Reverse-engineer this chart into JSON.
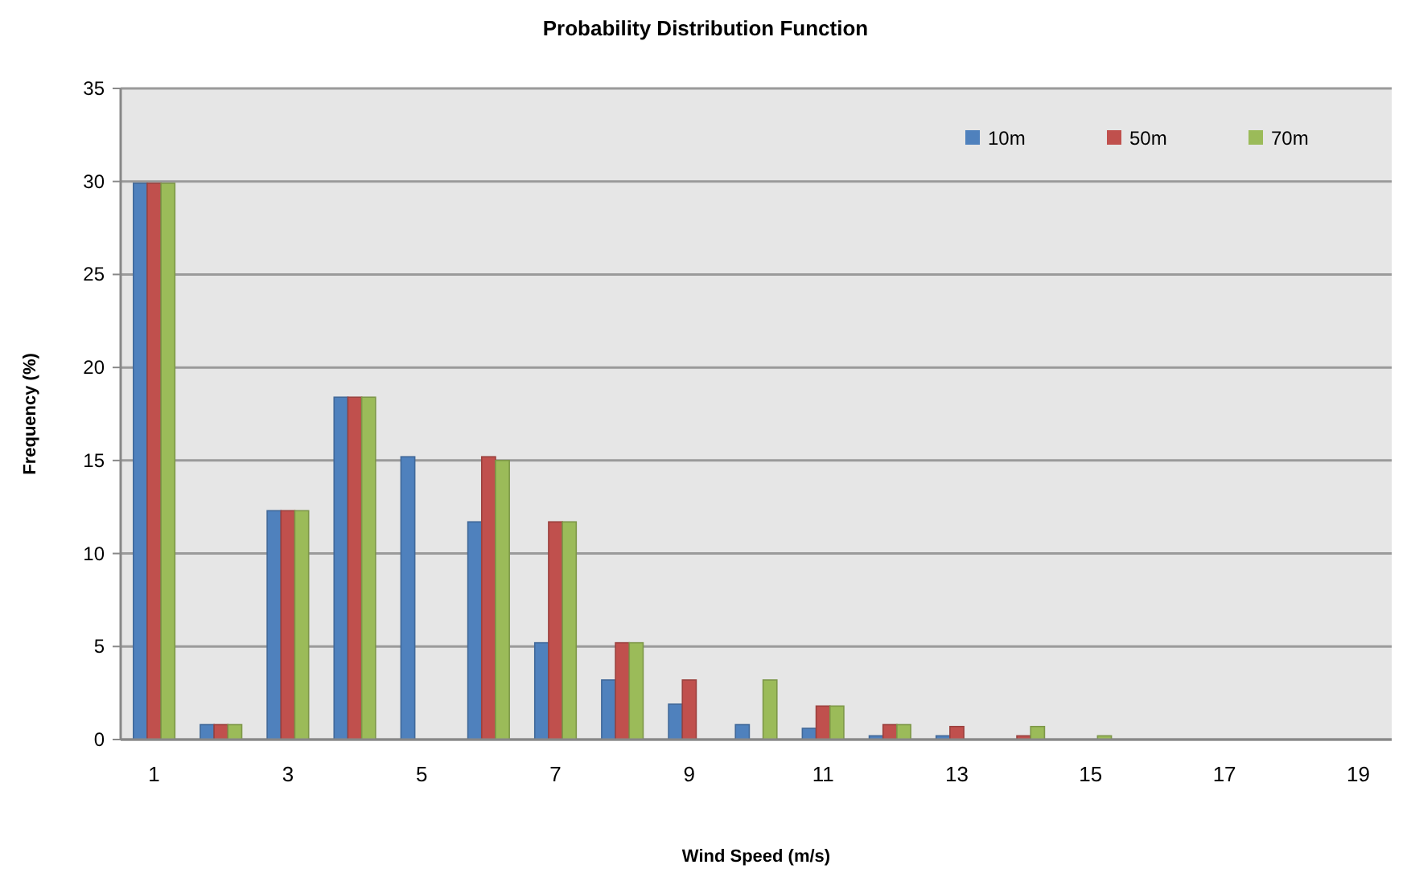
{
  "chart_data": {
    "type": "bar",
    "title": "Probability Distribution Function",
    "xlabel": "Wind Speed (m/s)",
    "ylabel": "Frequency (%)",
    "x": [
      1,
      2,
      3,
      4,
      5,
      6,
      7,
      8,
      9,
      10,
      11,
      12,
      13,
      14,
      15,
      16,
      17,
      18,
      19
    ],
    "xlim": [
      0.5,
      19.5
    ],
    "xticks": [
      1,
      3,
      5,
      7,
      9,
      11,
      13,
      15,
      17,
      19
    ],
    "series": [
      {
        "name": "10m",
        "color": "#4f81bd",
        "values": [
          29.9,
          0.8,
          12.3,
          18.4,
          15.2,
          11.7,
          5.2,
          3.2,
          1.9,
          0.8,
          0.6,
          0.2,
          0.2,
          0,
          0,
          0,
          0,
          0,
          0
        ]
      },
      {
        "name": "50m",
        "color": "#c0504d",
        "values": [
          29.9,
          0.8,
          12.3,
          18.4,
          0,
          15.2,
          11.7,
          5.2,
          3.2,
          0,
          1.8,
          0.8,
          0.7,
          0.2,
          0,
          0,
          0,
          0,
          0
        ]
      },
      {
        "name": "70m",
        "color": "#9bbb59",
        "values": [
          29.9,
          0.8,
          12.3,
          18.4,
          0,
          15,
          11.7,
          5.2,
          0,
          3.2,
          1.8,
          0.8,
          0,
          0.7,
          0.2,
          0,
          0,
          0,
          0
        ]
      }
    ],
    "ylim": [
      0,
      35
    ],
    "yticks": [
      0,
      5,
      10,
      15,
      20,
      25,
      30,
      35
    ],
    "grid": "y",
    "legend": "top right"
  }
}
